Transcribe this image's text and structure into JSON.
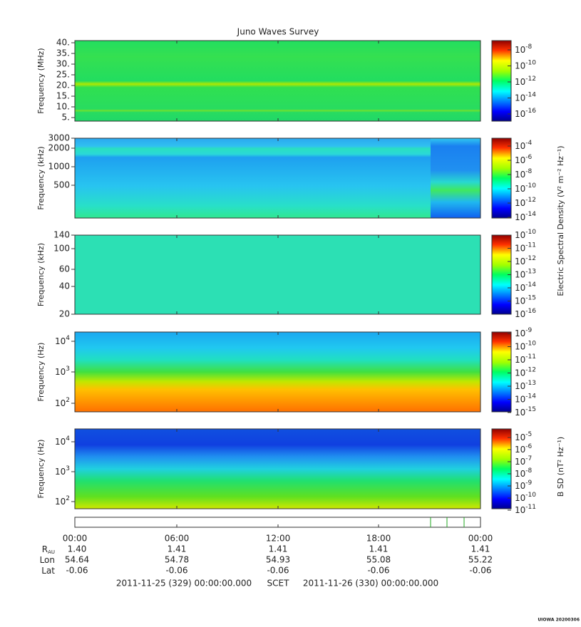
{
  "title": "Juno Waves Survey",
  "panels": [
    {
      "ylabel": "Frequency (MHz)",
      "yticks": [
        "40.",
        "35.",
        "30.",
        "25.",
        "20.",
        "15.",
        "10.",
        "5."
      ],
      "colorbar": [
        {
          "base": "10",
          "exp": "-8"
        },
        {
          "base": "10",
          "exp": "-10"
        },
        {
          "base": "10",
          "exp": "-12"
        },
        {
          "base": "10",
          "exp": "-14"
        },
        {
          "base": "10",
          "exp": "-16"
        }
      ]
    },
    {
      "ylabel": "Frequency (kHz)",
      "yticks": [
        "3000",
        "2000",
        "1000",
        "500"
      ],
      "colorbar": [
        {
          "base": "10",
          "exp": "-4"
        },
        {
          "base": "10",
          "exp": "-6"
        },
        {
          "base": "10",
          "exp": "-8"
        },
        {
          "base": "10",
          "exp": "-10"
        },
        {
          "base": "10",
          "exp": "-12"
        },
        {
          "base": "10",
          "exp": "-14"
        }
      ]
    },
    {
      "ylabel": "Frequency (kHz)",
      "yticks": [
        "140",
        "100",
        "60",
        "40",
        "20"
      ],
      "colorbar": [
        {
          "base": "10",
          "exp": "-10"
        },
        {
          "base": "10",
          "exp": "-11"
        },
        {
          "base": "10",
          "exp": "-12"
        },
        {
          "base": "10",
          "exp": "-13"
        },
        {
          "base": "10",
          "exp": "-14"
        },
        {
          "base": "10",
          "exp": "-15"
        },
        {
          "base": "10",
          "exp": "-16"
        }
      ]
    },
    {
      "ylabel": "Frequency (Hz)",
      "yticks": [
        {
          "base": "10",
          "exp": "4"
        },
        {
          "base": "10",
          "exp": "3"
        },
        {
          "base": "10",
          "exp": "2"
        }
      ],
      "colorbar": [
        {
          "base": "10",
          "exp": "-9"
        },
        {
          "base": "10",
          "exp": "-10"
        },
        {
          "base": "10",
          "exp": "-11"
        },
        {
          "base": "10",
          "exp": "-12"
        },
        {
          "base": "10",
          "exp": "-13"
        },
        {
          "base": "10",
          "exp": "-14"
        },
        {
          "base": "10",
          "exp": "-15"
        }
      ]
    },
    {
      "ylabel": "Frequency (Hz)",
      "yticks": [
        {
          "base": "10",
          "exp": "4"
        },
        {
          "base": "10",
          "exp": "3"
        },
        {
          "base": "10",
          "exp": "2"
        }
      ],
      "colorbar": [
        {
          "base": "10",
          "exp": "-5"
        },
        {
          "base": "10",
          "exp": "-6"
        },
        {
          "base": "10",
          "exp": "-7"
        },
        {
          "base": "10",
          "exp": "-8"
        },
        {
          "base": "10",
          "exp": "-9"
        },
        {
          "base": "10",
          "exp": "-10"
        },
        {
          "base": "10",
          "exp": "-11"
        }
      ]
    }
  ],
  "colorbar_labels": [
    "Electric Spectral Density (V² m⁻² Hz⁻¹)",
    "B SD (nT² Hz⁻¹)"
  ],
  "times": [
    "00:00",
    "06:00",
    "12:00",
    "18:00",
    "00:00"
  ],
  "ephemeris": [
    {
      "label": {
        "main": "R",
        "sub": "AU"
      },
      "values": [
        "1.40",
        "1.41",
        "1.41",
        "1.41",
        "1.41"
      ]
    },
    {
      "label": {
        "main": "Lon"
      },
      "values": [
        "54.64",
        "54.78",
        "54.93",
        "55.08",
        "55.22"
      ]
    },
    {
      "label": {
        "main": "Lat"
      },
      "values": [
        "-0.06",
        "-0.06",
        "-0.06",
        "-0.06",
        "-0.06"
      ]
    }
  ],
  "footer": {
    "start": "2011-11-25 (329) 00:00:00.000",
    "scet": "SCET",
    "end": "2011-11-26 (330) 00:00:00.000"
  },
  "credit": "UIOWA 20200306"
}
